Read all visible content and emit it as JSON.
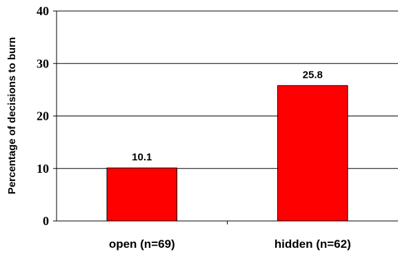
{
  "chart_data": {
    "type": "bar",
    "categories": [
      "open (n=69)",
      "hidden (n=62)"
    ],
    "values": [
      10.1,
      25.8
    ],
    "value_labels": [
      "10.1",
      "25.8"
    ],
    "ylabel": "Percentage of decisions to burn",
    "ylim": [
      0,
      40
    ],
    "yticks": [
      "0",
      "10",
      "20",
      "30",
      "40"
    ],
    "grid": true,
    "legend": "none",
    "bar_color": "#ff0000"
  }
}
